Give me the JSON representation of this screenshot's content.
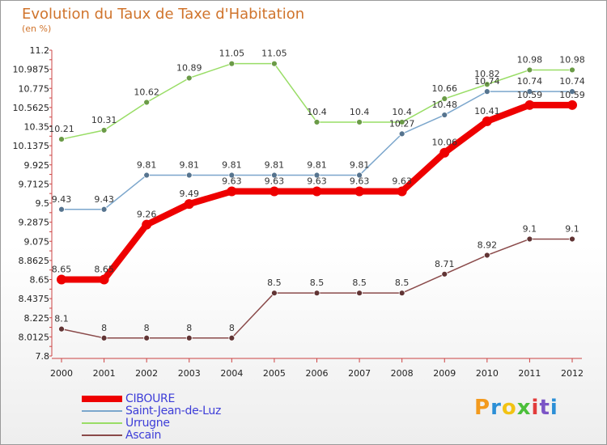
{
  "title": "Evolution du Taux de Taxe d'Habitation",
  "subtitle": "(en %)",
  "logo_text": "Proxiti",
  "colors": {
    "logo": [
      "#f39a1d",
      "#2b8fd6",
      "#f2c314",
      "#4bbf3a",
      "#e23b3b",
      "#7b54c6",
      "#2b8fd6"
    ]
  },
  "chart_data": {
    "type": "line",
    "title": "Evolution du Taux de Taxe d'Habitation",
    "subtitle": "(en %)",
    "x": [
      "2000",
      "2001",
      "2002",
      "2003",
      "2004",
      "2005",
      "2006",
      "2007",
      "2008",
      "2009",
      "2010",
      "2011",
      "2012"
    ],
    "y_ticks": [
      "11.2",
      "10.9875",
      "10.775",
      "10.5625",
      "10.35",
      "10.1375",
      "9.925",
      "9.7125",
      "9.5",
      "9.2875",
      "9.075",
      "8.8625",
      "8.65",
      "8.4375",
      "8.225",
      "8.0125",
      "7.8"
    ],
    "ylim": [
      7.8,
      11.2
    ],
    "grid": false,
    "legend_position": "bottom-left",
    "series": [
      {
        "name": "CIBOURE",
        "color": "#ee0000",
        "width": 8,
        "values": [
          8.65,
          8.65,
          9.26,
          9.49,
          9.63,
          9.63,
          9.63,
          9.63,
          9.63,
          10.06,
          10.41,
          10.59,
          10.59
        ],
        "labels": [
          "8.65",
          "8.65",
          "9.26",
          "9.49",
          "9.63",
          "9.63",
          "9.63",
          "9.63",
          "9.63",
          "10.06",
          "10.41",
          "10.59",
          "10.59"
        ]
      },
      {
        "name": "Saint-Jean-de-Luz",
        "color": "#7ba6cc",
        "width": 1.5,
        "values": [
          9.43,
          9.43,
          9.81,
          9.81,
          9.81,
          9.81,
          9.81,
          9.81,
          10.27,
          10.48,
          10.74,
          10.74,
          10.74
        ],
        "labels": [
          "9.43",
          "9.43",
          "9.81",
          "9.81",
          "9.81",
          "9.81",
          "9.81",
          "9.81",
          "10.27",
          "10.48",
          "10.74",
          "10.74",
          "10.74"
        ]
      },
      {
        "name": "Urrugne",
        "color": "#99dd66",
        "width": 1.5,
        "values": [
          10.21,
          10.31,
          10.62,
          10.89,
          11.05,
          11.05,
          10.4,
          10.4,
          10.4,
          10.66,
          10.82,
          10.98,
          10.98
        ],
        "labels": [
          "10.21",
          "10.31",
          "10.62",
          "10.89",
          "11.05",
          "11.05",
          "10.4",
          "10.4",
          "10.4",
          "10.66",
          "10.82",
          "10.98",
          "10.98"
        ]
      },
      {
        "name": "Ascain",
        "color": "#8a4a4a",
        "width": 1.5,
        "values": [
          8.1,
          8,
          8,
          8,
          8,
          8.5,
          8.5,
          8.5,
          8.5,
          8.71,
          8.92,
          9.1,
          9.1
        ],
        "labels": [
          "8.1",
          "8",
          "8",
          "8",
          "8",
          "8.5",
          "8.5",
          "8.5",
          "8.5",
          "8.71",
          "8.92",
          "9.1",
          "9.1"
        ]
      }
    ]
  }
}
